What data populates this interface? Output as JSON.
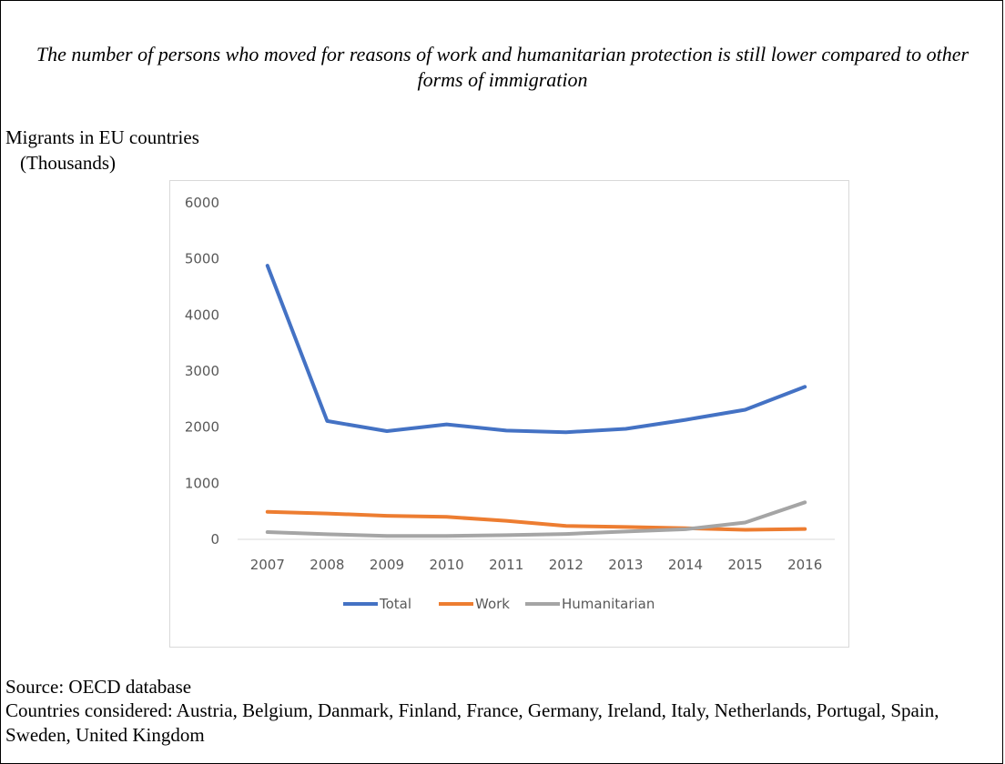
{
  "subtitle": "The number of persons who moved for reasons of work and humanitarian protection is still lower compared to other forms of immigration",
  "ylabel_line1": "Migrants in EU countries",
  "ylabel_line2": "(Thousands)",
  "source": "Source: OECD database",
  "countries": "Countries considered: Austria, Belgium, Danmark, Finland, France, Germany, Ireland, Italy, Netherlands, Portugal, Spain, Sweden, United Kingdom",
  "chart_data": {
    "type": "line",
    "categories": [
      "2007",
      "2008",
      "2009",
      "2010",
      "2011",
      "2012",
      "2013",
      "2014",
      "2015",
      "2016"
    ],
    "ylim": [
      0,
      6000
    ],
    "yticks": [
      "0",
      "1000",
      "2000",
      "3000",
      "4000",
      "5000",
      "6000"
    ],
    "grid": false,
    "legend_position": "bottom",
    "series": [
      {
        "name": "Total",
        "color": "#4472c4",
        "values": [
          4880,
          2110,
          1930,
          2050,
          1940,
          1910,
          1970,
          2130,
          2310,
          2720
        ]
      },
      {
        "name": "Work",
        "color": "#ed7d31",
        "values": [
          490,
          460,
          420,
          400,
          330,
          240,
          220,
          200,
          170,
          185
        ]
      },
      {
        "name": "Humanitarian",
        "color": "#a5a5a5",
        "values": [
          130,
          90,
          60,
          60,
          75,
          95,
          140,
          180,
          300,
          660
        ]
      }
    ]
  }
}
